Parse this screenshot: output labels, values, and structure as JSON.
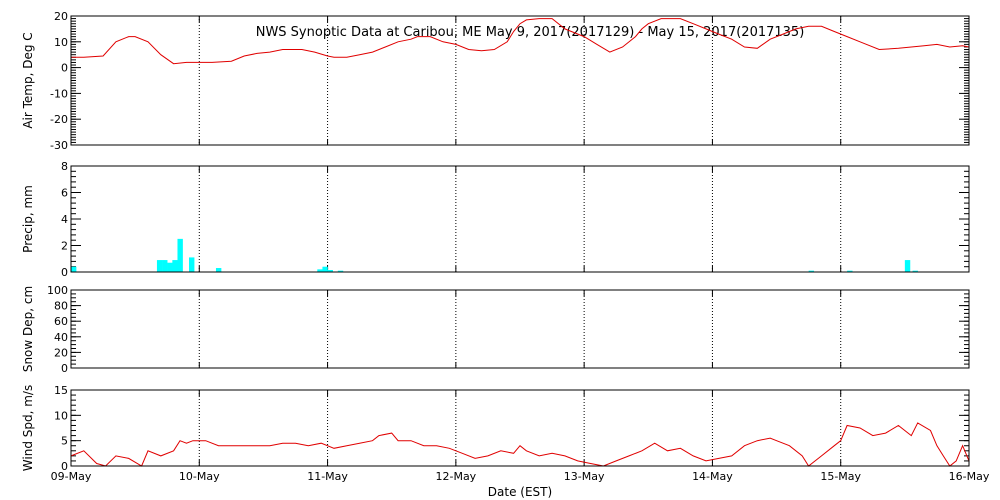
{
  "title": "NWS Synoptic Data at Caribou, ME   May  9, 2017(2017129) - May 15, 2017(2017135)",
  "xlabel": "Date (EST)",
  "colors": {
    "line": "#e00000",
    "bar": "#00ffff",
    "axis": "#000000",
    "background": "#ffffff"
  },
  "x_ticks": [
    "09-May",
    "10-May",
    "11-May",
    "12-May",
    "13-May",
    "14-May",
    "15-May",
    "16-May"
  ],
  "chart_data": [
    {
      "type": "line",
      "ylabel": "Air Temp, Deg C",
      "ylim": [
        -30,
        20
      ],
      "yticks": [
        "20",
        "10",
        "0",
        "-10",
        "-20",
        "-30"
      ],
      "grid": "x-dotted",
      "x_unit": "days since 09-May",
      "x": [
        0,
        0.1,
        0.25,
        0.35,
        0.45,
        0.5,
        0.6,
        0.7,
        0.8,
        0.9,
        1.0,
        1.1,
        1.25,
        1.35,
        1.45,
        1.55,
        1.65,
        1.8,
        1.9,
        2.0,
        2.05,
        2.15,
        2.25,
        2.35,
        2.45,
        2.55,
        2.65,
        2.7,
        2.8,
        2.9,
        3.0,
        3.1,
        3.2,
        3.3,
        3.4,
        3.45,
        3.5,
        3.55,
        3.65,
        3.75,
        3.85,
        4.0,
        4.1,
        4.2,
        4.3,
        4.4,
        4.45,
        4.5,
        4.6,
        4.75,
        4.85,
        4.95,
        5.05,
        5.15,
        5.25,
        5.35,
        5.45,
        5.55,
        5.65,
        5.75,
        5.85,
        5.95,
        6.05,
        6.15,
        6.3,
        6.45,
        6.55,
        6.65,
        6.75,
        6.85,
        6.95,
        7.0
      ],
      "values": [
        4,
        4,
        4.5,
        10,
        12,
        12,
        10,
        5,
        1.5,
        2,
        2,
        2,
        2.5,
        4.5,
        5.5,
        6,
        7,
        7,
        6,
        4.5,
        4,
        4,
        5,
        6,
        8,
        10,
        11,
        12,
        12,
        10,
        9,
        7,
        6.5,
        7,
        10,
        14,
        17,
        18.5,
        19,
        19,
        15,
        12,
        9,
        6,
        8,
        12,
        15,
        17,
        19,
        19,
        17,
        15,
        13,
        11,
        8,
        7.5,
        11,
        13,
        15,
        16,
        16,
        14,
        12,
        10,
        7,
        7.5,
        8,
        8.5,
        9,
        8,
        8.5,
        8
      ]
    },
    {
      "type": "bar",
      "ylabel": "Precip, mm",
      "ylim": [
        0,
        8
      ],
      "yticks": [
        "8",
        "6",
        "4",
        "2",
        "0"
      ],
      "grid": "x-dotted",
      "bar_width": 0.042,
      "x_unit": "days since 09-May",
      "x": [
        0.0,
        0.67,
        0.71,
        0.75,
        0.79,
        0.83,
        0.92,
        1.13,
        1.92,
        1.96,
        2.0,
        2.08,
        5.75,
        6.05,
        6.5,
        6.56
      ],
      "values": [
        0.4,
        0.9,
        0.9,
        0.7,
        0.9,
        2.5,
        1.1,
        0.3,
        0.2,
        0.4,
        0.15,
        0.1,
        0.1,
        0.1,
        0.9,
        0.1
      ]
    },
    {
      "type": "line",
      "ylabel": "Snow Dep, cm",
      "ylim": [
        0,
        100
      ],
      "yticks": [
        "100",
        "80",
        "60",
        "40",
        "20",
        "0"
      ],
      "grid": "x-dotted",
      "x_unit": "days since 09-May",
      "x": [],
      "values": []
    },
    {
      "type": "line",
      "ylabel": "Wind Spd, m/s",
      "ylim": [
        0,
        15
      ],
      "yticks": [
        "15",
        "10",
        "5",
        "0"
      ],
      "grid": "x-dotted",
      "x_unit": "days since 09-May",
      "x": [
        0,
        0.1,
        0.2,
        0.27,
        0.35,
        0.45,
        0.55,
        0.6,
        0.7,
        0.8,
        0.85,
        0.9,
        0.95,
        1.05,
        1.15,
        1.25,
        1.35,
        1.45,
        1.55,
        1.65,
        1.75,
        1.85,
        1.95,
        2.05,
        2.15,
        2.25,
        2.35,
        2.4,
        2.5,
        2.55,
        2.65,
        2.75,
        2.85,
        2.95,
        3.05,
        3.15,
        3.25,
        3.35,
        3.45,
        3.5,
        3.55,
        3.65,
        3.75,
        3.85,
        3.95,
        4.05,
        4.15,
        4.25,
        4.35,
        4.45,
        4.55,
        4.65,
        4.75,
        4.85,
        4.95,
        5.05,
        5.15,
        5.25,
        5.35,
        5.45,
        5.5,
        5.6,
        5.7,
        5.75,
        5.85,
        5.95,
        6.0,
        6.05,
        6.15,
        6.25,
        6.35,
        6.45,
        6.55,
        6.6,
        6.7,
        6.75,
        6.8,
        6.85,
        6.9,
        6.95,
        7.0
      ],
      "values": [
        2,
        3,
        0.5,
        0,
        2,
        1.5,
        0,
        3,
        2,
        3,
        5,
        4.5,
        5,
        5,
        4,
        4,
        4,
        4,
        4,
        4.5,
        4.5,
        4,
        4.5,
        3.5,
        4,
        4.5,
        5,
        6,
        6.5,
        5,
        5,
        4,
        4,
        3.5,
        2.5,
        1.5,
        2,
        3,
        2.5,
        4,
        3,
        2,
        2.5,
        2,
        1,
        0.5,
        0,
        1,
        2,
        3,
        4.5,
        3,
        3.5,
        2,
        1,
        1.5,
        2,
        4,
        5,
        5.5,
        5,
        4,
        2,
        0,
        2,
        4,
        5,
        8,
        7.5,
        6,
        6.5,
        8,
        6,
        8.5,
        7,
        4,
        2,
        0,
        1,
        4,
        1
      ]
    }
  ]
}
